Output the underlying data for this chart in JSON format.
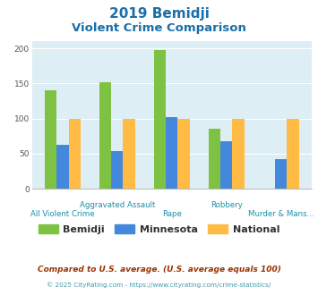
{
  "title_line1": "2019 Bemidji",
  "title_line2": "Violent Crime Comparison",
  "categories_line1": [
    "",
    "Aggravated Assault",
    "",
    "Robbery",
    ""
  ],
  "categories_line2": [
    "All Violent Crime",
    "",
    "Rape",
    "",
    "Murder & Mans..."
  ],
  "bemidji": [
    140,
    152,
    197,
    86,
    0
  ],
  "minnesota": [
    63,
    54,
    102,
    68,
    42
  ],
  "national": [
    100,
    100,
    100,
    100,
    100
  ],
  "color_bemidji": "#7dc242",
  "color_minnesota": "#4488dd",
  "color_national": "#ffbb44",
  "ylim": [
    0,
    210
  ],
  "yticks": [
    0,
    50,
    100,
    150,
    200
  ],
  "bg_color": "#ddeef4",
  "title_color": "#1a6fa8",
  "xlabel_color_top": "#1a8fa8",
  "xlabel_color_bot": "#1a8fa8",
  "legend_bemidji": "Bemidji",
  "legend_minnesota": "Minnesota",
  "legend_national": "National",
  "footnote1": "Compared to U.S. average. (U.S. average equals 100)",
  "footnote2": "© 2025 CityRating.com - https://www.cityrating.com/crime-statistics/",
  "footnote1_color": "#993300",
  "footnote2_color": "#4499aa",
  "footnote2_prefix_color": "#888888"
}
